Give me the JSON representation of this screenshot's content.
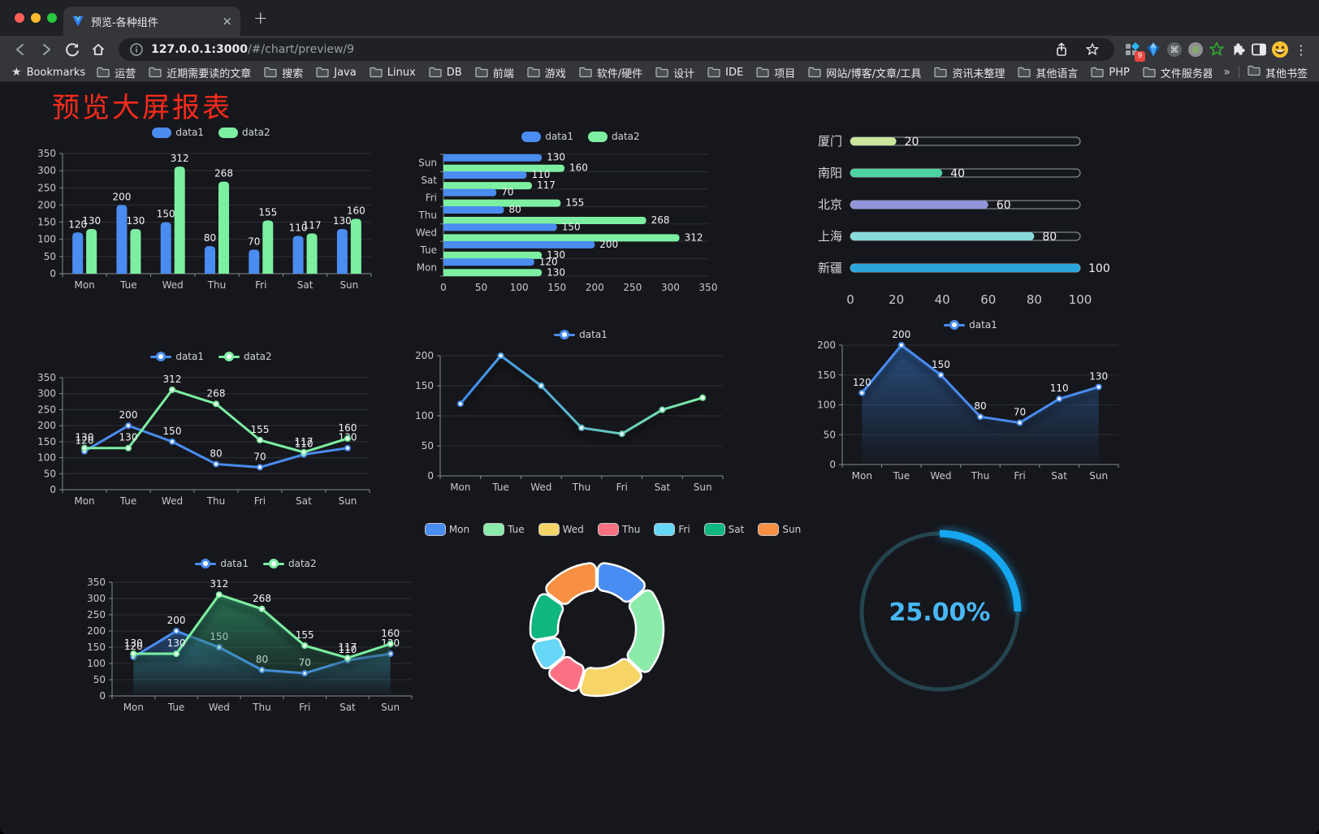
{
  "browser": {
    "traffic_lights": [
      "#ff5f57",
      "#febc2e",
      "#28c840"
    ],
    "tab": {
      "title": "预览-各种组件",
      "close": "×",
      "new_tab": "+"
    },
    "url_host": "127.0.0.1:3000",
    "url_path": "/#/chart/preview/9",
    "extension_badge": "9",
    "bookmarks_bar": {
      "star_label": "Bookmarks",
      "folders": [
        "运营",
        "近期需要读的文章",
        "搜索",
        "Java",
        "Linux",
        "DB",
        "前端",
        "游戏",
        "软件/硬件",
        "设计",
        "IDE",
        "项目",
        "网站/博客/文章/工具",
        "资讯未整理",
        "其他语言",
        "PHP",
        "文件服务器"
      ],
      "overflow": "»",
      "other": "其他书签"
    }
  },
  "page": {
    "title": "预览大屏报表",
    "title_color": "#fb2b1b",
    "background": "#16171c"
  },
  "chart_data": [
    {
      "id": "bar-grouped",
      "type": "bar",
      "categories": [
        "Mon",
        "Tue",
        "Wed",
        "Thu",
        "Fri",
        "Sat",
        "Sun"
      ],
      "series": [
        {
          "name": "data1",
          "color": "#4a8cf0",
          "values": [
            120,
            200,
            150,
            80,
            70,
            110,
            130
          ]
        },
        {
          "name": "data2",
          "color": "#7cefa1",
          "values": [
            130,
            130,
            312,
            268,
            155,
            117,
            160
          ]
        }
      ],
      "ylim": [
        0,
        350
      ],
      "yticks": [
        0,
        50,
        100,
        150,
        200,
        250,
        300,
        350
      ],
      "labels": true
    },
    {
      "id": "bar-horizontal",
      "type": "hbar",
      "categories": [
        "Mon",
        "Tue",
        "Wed",
        "Thu",
        "Fri",
        "Sat",
        "Sun"
      ],
      "series": [
        {
          "name": "data1",
          "color": "#4a8cf0",
          "values": [
            120,
            200,
            150,
            80,
            70,
            110,
            130
          ]
        },
        {
          "name": "data2",
          "color": "#7cefa1",
          "values": [
            130,
            130,
            312,
            268,
            155,
            117,
            160
          ]
        }
      ],
      "xlim": [
        0,
        350
      ],
      "xticks": [
        0,
        50,
        100,
        150,
        200,
        250,
        300,
        350
      ],
      "labels": true
    },
    {
      "id": "progress-list",
      "type": "progress",
      "max": 100,
      "xticks": [
        0,
        20,
        40,
        60,
        80,
        100
      ],
      "items": [
        {
          "label": "厦门",
          "value": 20,
          "color": "#c9e69b"
        },
        {
          "label": "南阳",
          "value": 40,
          "color": "#4cd5a1"
        },
        {
          "label": "北京",
          "value": 60,
          "color": "#9095da"
        },
        {
          "label": "上海",
          "value": 80,
          "color": "#87dcda"
        },
        {
          "label": "新疆",
          "value": 100,
          "color": "#2ba6dd"
        }
      ]
    },
    {
      "id": "line-dual",
      "type": "line",
      "categories": [
        "Mon",
        "Tue",
        "Wed",
        "Thu",
        "Fri",
        "Sat",
        "Sun"
      ],
      "series": [
        {
          "name": "data1",
          "color": "#4a8cf0",
          "values": [
            120,
            200,
            150,
            80,
            70,
            110,
            130
          ]
        },
        {
          "name": "data2",
          "color": "#7cefa1",
          "values": [
            130,
            130,
            312,
            268,
            155,
            117,
            160
          ]
        }
      ],
      "ylim": [
        0,
        350
      ],
      "yticks": [
        0,
        50,
        100,
        150,
        200,
        250,
        300,
        350
      ],
      "labels": true
    },
    {
      "id": "line-gradient",
      "type": "line",
      "categories": [
        "Mon",
        "Tue",
        "Wed",
        "Thu",
        "Fri",
        "Sat",
        "Sun"
      ],
      "series": [
        {
          "name": "data1",
          "color": "#4a8cf0",
          "gradient": [
            "#3f8cf3",
            "#7cefa1"
          ],
          "values": [
            120,
            200,
            150,
            80,
            70,
            110,
            130
          ]
        }
      ],
      "ylim": [
        0,
        200
      ],
      "yticks": [
        0,
        50,
        100,
        150,
        200
      ],
      "labels": false,
      "shadow": true
    },
    {
      "id": "line-area",
      "type": "line",
      "categories": [
        "Mon",
        "Tue",
        "Wed",
        "Thu",
        "Fri",
        "Sat",
        "Sun"
      ],
      "series": [
        {
          "name": "data1",
          "color": "#4a8cf0",
          "area": true,
          "area_color": "#2d5e9e",
          "values": [
            120,
            200,
            150,
            80,
            70,
            110,
            130
          ]
        }
      ],
      "ylim": [
        0,
        200
      ],
      "yticks": [
        0,
        50,
        100,
        150,
        200
      ],
      "labels": true,
      "shadow": true
    },
    {
      "id": "line-area-dual",
      "type": "line",
      "categories": [
        "Mon",
        "Tue",
        "Wed",
        "Thu",
        "Fri",
        "Sat",
        "Sun"
      ],
      "series": [
        {
          "name": "data1",
          "color": "#4a8cf0",
          "area": true,
          "area_color": "#2d5e9e",
          "values": [
            120,
            200,
            150,
            80,
            70,
            110,
            130
          ]
        },
        {
          "name": "data2",
          "color": "#7cefa1",
          "area": true,
          "area_color": "#2e8f66",
          "values": [
            130,
            130,
            312,
            268,
            155,
            117,
            160
          ]
        }
      ],
      "ylim": [
        0,
        350
      ],
      "yticks": [
        0,
        50,
        100,
        150,
        200,
        250,
        300,
        350
      ],
      "labels": true,
      "shadow": true
    },
    {
      "id": "pie-donut",
      "type": "pie",
      "items": [
        {
          "label": "Mon",
          "value": 120,
          "color": "#4a8df2"
        },
        {
          "label": "Tue",
          "value": 200,
          "color": "#8bebaa"
        },
        {
          "label": "Wed",
          "value": 150,
          "color": "#f6d566"
        },
        {
          "label": "Thu",
          "value": 80,
          "color": "#fb7183"
        },
        {
          "label": "Fri",
          "value": 70,
          "color": "#66d7f6"
        },
        {
          "label": "Sat",
          "value": 110,
          "color": "#0fb67f"
        },
        {
          "label": "Sun",
          "value": 130,
          "color": "#f79043"
        }
      ]
    },
    {
      "id": "gauge",
      "type": "gauge",
      "value": 25,
      "text": "25.00%",
      "track_color": "#24444f",
      "arc_color": "#16a7f0",
      "text_color": "#47b7f6"
    }
  ]
}
